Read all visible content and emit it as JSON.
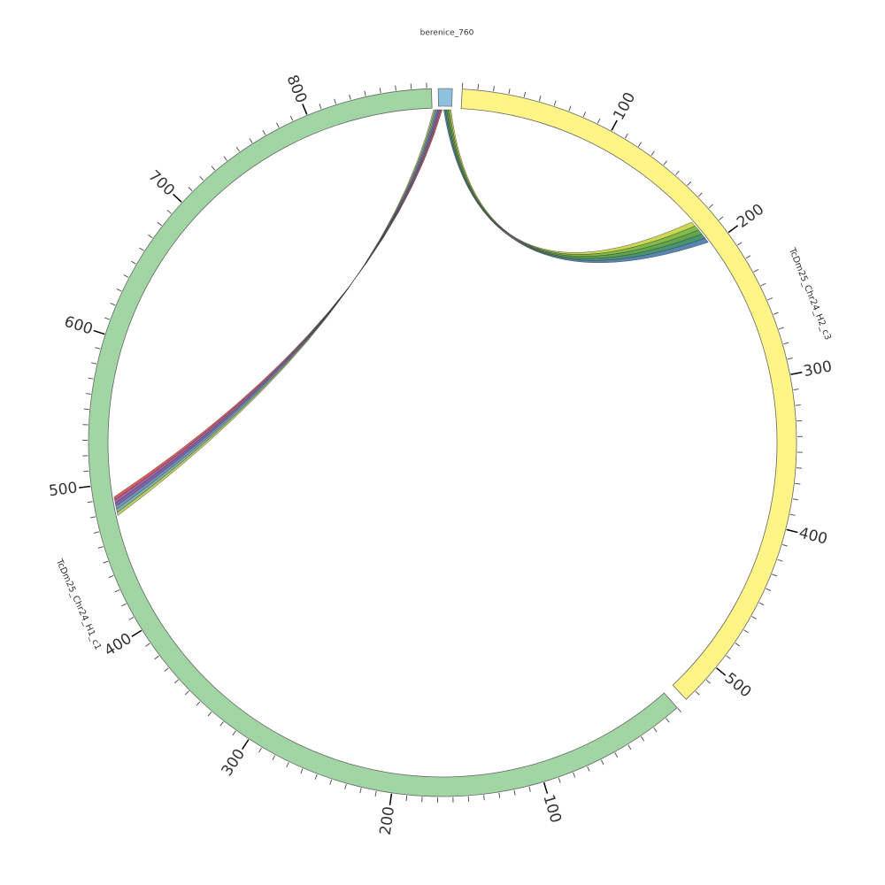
{
  "title": "berenice_760",
  "segments": [
    {
      "label": "TcDm25_Chr24_H2_c3",
      "ticks": [
        100,
        200,
        300,
        400,
        500
      ]
    },
    {
      "label": "TcDm25_Chr24_H1_c1",
      "ticks": [
        100,
        200,
        300,
        400,
        500,
        600,
        700,
        800
      ]
    }
  ]
}
